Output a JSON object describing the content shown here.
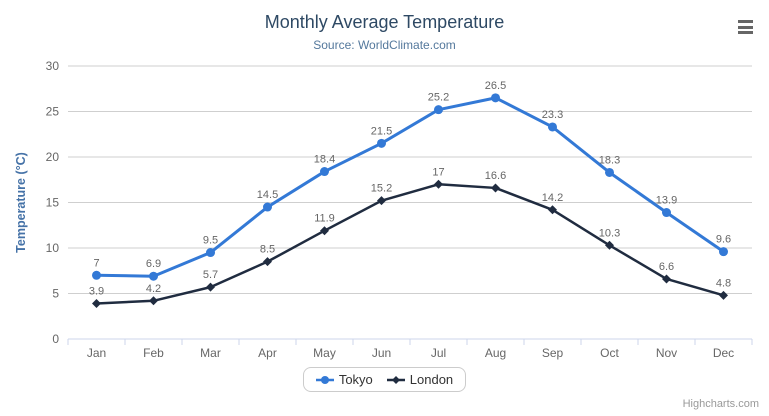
{
  "theme": {
    "background": "#ffffff",
    "title_color": "#2e4964",
    "subtitle_color": "#54789c",
    "axis_label_color": "#666666",
    "y_axis_title_color": "#4572a7",
    "grid_color": "#cfcfcf",
    "axis_line_color": "#ccd6eb",
    "data_label_color": "#666666",
    "legend_text_color": "#333333",
    "legend_border_color": "#cccccc",
    "credits_color": "#999999",
    "menu_icon_color": "#666666"
  },
  "chart_data": {
    "type": "line",
    "title": "Monthly Average Temperature",
    "subtitle": "Source: WorldClimate.com",
    "categories": [
      "Jan",
      "Feb",
      "Mar",
      "Apr",
      "May",
      "Jun",
      "Jul",
      "Aug",
      "Sep",
      "Oct",
      "Nov",
      "Dec"
    ],
    "series": [
      {
        "name": "Tokyo",
        "color": "#3379d6",
        "marker": "circle",
        "values": [
          7,
          6.9,
          9.5,
          14.5,
          18.4,
          21.5,
          25.2,
          26.5,
          23.3,
          18.3,
          13.9,
          9.6
        ]
      },
      {
        "name": "London",
        "color": "#202c40",
        "marker": "diamond",
        "values": [
          3.9,
          4.2,
          5.7,
          8.5,
          11.9,
          15.2,
          17,
          16.6,
          14.2,
          10.3,
          6.6,
          4.8
        ]
      }
    ],
    "xlabel": "",
    "ylabel": "Temperature (°C)",
    "ylim": [
      0,
      30
    ],
    "yticks": [
      0,
      5,
      10,
      15,
      20,
      25,
      30
    ],
    "grid": true,
    "data_labels": true,
    "legend_position": "bottom"
  },
  "credits": {
    "text": "Highcharts.com"
  }
}
